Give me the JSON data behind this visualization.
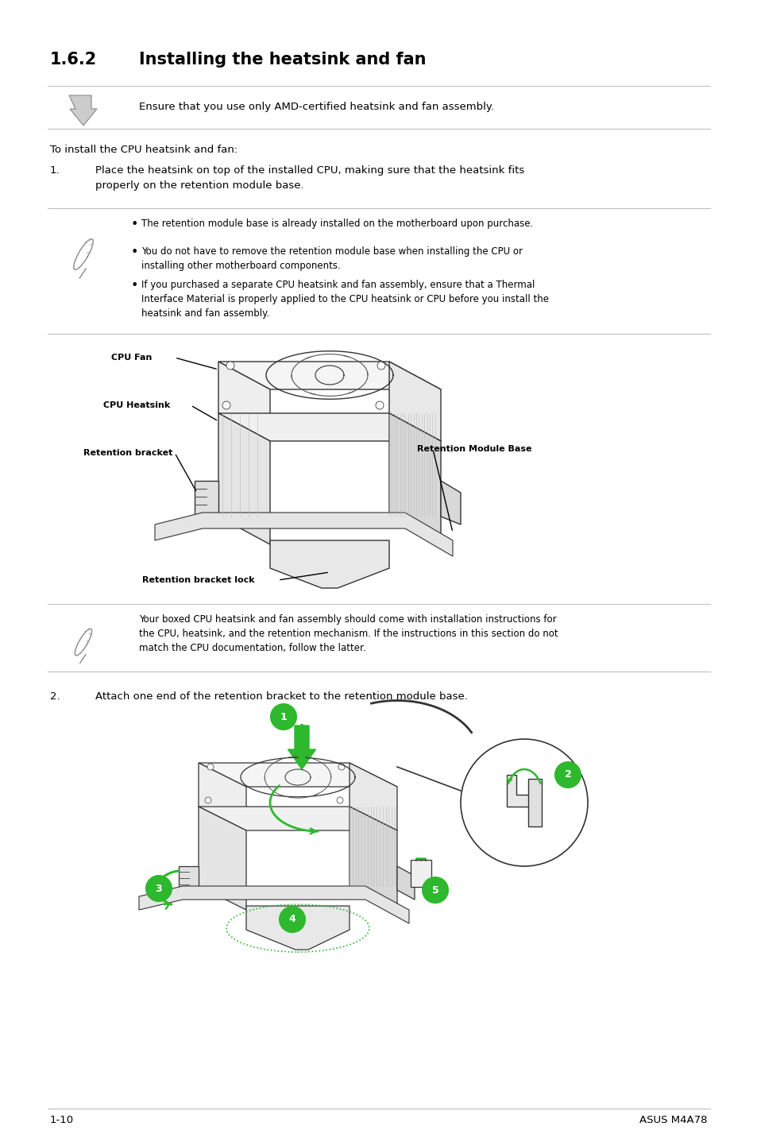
{
  "title_num": "1.6.2",
  "title_text": "Installing the heatsink and fan",
  "page_bg": "#ffffff",
  "title_fontsize": 15,
  "body_fontsize": 9.5,
  "small_fontsize": 8.5,
  "footer_left": "1-10",
  "footer_right": "ASUS M4A78",
  "caution_text": "Ensure that you use only AMD-certified heatsink and fan assembly.",
  "intro_text": "To install the CPU heatsink and fan:",
  "step1_text": "Place the heatsink on top of the installed CPU, making sure that the heatsink fits\nproperly on the retention module base.",
  "note_bullets": [
    "The retention module base is already installed on the motherboard upon purchase.",
    "You do not have to remove the retention module base when installing the CPU or\ninstalling other motherboard components.",
    "If you purchased a separate CPU heatsink and fan assembly, ensure that a Thermal\nInterface Material is properly applied to the CPU heatsink or CPU before you install the\nheatsink and fan assembly."
  ],
  "note2_text": "Your boxed CPU heatsink and fan assembly should come with installation instructions for\nthe CPU, heatsink, and the retention mechanism. If the instructions in this section do not\nmatch the CPU documentation, follow the latter.",
  "step2_text": "Attach one end of the retention bracket to the retention module base.",
  "line_color": "#c8c8c8",
  "green_color": "#2db82d",
  "label_cpu_fan": "CPU Fan",
  "label_cpu_heatsink": "CPU Heatsink",
  "label_retention_bracket": "Retention bracket",
  "label_retention_module_base": "Retention Module Base",
  "label_retention_bracket_lock": "Retention bracket lock"
}
